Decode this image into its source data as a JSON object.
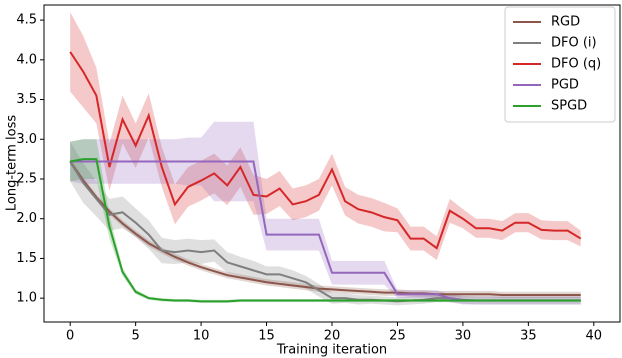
{
  "chart_data": {
    "type": "line",
    "xlabel": "Training iteration",
    "ylabel": "Long-term loss",
    "x": [
      0,
      1,
      2,
      3,
      4,
      5,
      6,
      7,
      8,
      9,
      10,
      11,
      12,
      13,
      14,
      15,
      16,
      17,
      18,
      19,
      20,
      21,
      22,
      23,
      24,
      25,
      26,
      27,
      28,
      29,
      30,
      31,
      32,
      33,
      34,
      35,
      36,
      37,
      38,
      39
    ],
    "xlim": [
      -2,
      42
    ],
    "xticks": [
      0,
      5,
      10,
      15,
      20,
      25,
      30,
      35,
      40
    ],
    "ylim": [
      0.7,
      4.69
    ],
    "yticks": [
      {
        "value": 1,
        "label": "1.0"
      },
      1.5,
      {
        "value": 2,
        "label": "2.0"
      },
      2.5,
      {
        "value": 3,
        "label": "3.0"
      },
      3.5,
      {
        "value": 4,
        "label": "4.0"
      },
      4.5
    ],
    "legend": "upper right",
    "series": [
      {
        "name": "RGD",
        "color": "#8c564b",
        "values": [
          2.72,
          2.48,
          2.27,
          2.09,
          1.94,
          1.81,
          1.69,
          1.6,
          1.52,
          1.45,
          1.39,
          1.34,
          1.29,
          1.26,
          1.23,
          1.2,
          1.18,
          1.16,
          1.14,
          1.12,
          1.11,
          1.1,
          1.09,
          1.08,
          1.07,
          1.07,
          1.06,
          1.06,
          1.05,
          1.05,
          1.05,
          1.05,
          1.05,
          1.04,
          1.04,
          1.04,
          1.04,
          1.04,
          1.04,
          1.04
        ],
        "errors": [
          0.04,
          0.04,
          0.04,
          0.04,
          0.04,
          0.04,
          0.04,
          0.04,
          0.04,
          0.04,
          0.04,
          0.04,
          0.04,
          0.04,
          0.04,
          0.04,
          0.04,
          0.04,
          0.04,
          0.04,
          0.04,
          0.04,
          0.04,
          0.04,
          0.04,
          0.04,
          0.04,
          0.04,
          0.04,
          0.04,
          0.04,
          0.04,
          0.04,
          0.04,
          0.04,
          0.04,
          0.04,
          0.04,
          0.04,
          0.04
        ]
      },
      {
        "name": "DFO (i)",
        "color": "#7f7f7f",
        "values": [
          2.72,
          2.45,
          2.25,
          2.05,
          2.08,
          1.95,
          1.8,
          1.6,
          1.58,
          1.6,
          1.58,
          1.6,
          1.45,
          1.4,
          1.35,
          1.3,
          1.3,
          1.25,
          1.2,
          1.1,
          1.0,
          1.0,
          0.98,
          0.98,
          0.97,
          0.96,
          0.97,
          0.98,
          1.0,
          1.0,
          0.98,
          0.97,
          0.97,
          0.97,
          0.97,
          0.97,
          0.97,
          0.97,
          0.97,
          0.97
        ],
        "errors": [
          0.25,
          0.25,
          0.22,
          0.2,
          0.2,
          0.18,
          0.18,
          0.16,
          0.15,
          0.15,
          0.15,
          0.14,
          0.13,
          0.12,
          0.12,
          0.1,
          0.1,
          0.1,
          0.08,
          0.08,
          0.07,
          0.06,
          0.06,
          0.05,
          0.05,
          0.05,
          0.05,
          0.05,
          0.05,
          0.05,
          0.05,
          0.05,
          0.05,
          0.05,
          0.05,
          0.05,
          0.05,
          0.05,
          0.05,
          0.05
        ]
      },
      {
        "name": "DFO (q)",
        "color": "#d62728",
        "values": [
          4.1,
          3.85,
          3.55,
          2.65,
          3.25,
          2.92,
          3.3,
          2.65,
          2.18,
          2.4,
          2.48,
          2.57,
          2.42,
          2.65,
          2.3,
          2.28,
          2.38,
          2.18,
          2.22,
          2.3,
          2.62,
          2.22,
          2.12,
          2.08,
          2.02,
          1.98,
          1.75,
          1.75,
          1.63,
          2.1,
          2.0,
          1.88,
          1.88,
          1.85,
          1.95,
          1.95,
          1.86,
          1.85,
          1.85,
          1.75
        ],
        "errors": [
          0.5,
          0.45,
          0.35,
          0.3,
          0.3,
          0.28,
          0.28,
          0.25,
          0.25,
          0.25,
          0.25,
          0.25,
          0.25,
          0.25,
          0.25,
          0.22,
          0.22,
          0.2,
          0.2,
          0.2,
          0.2,
          0.18,
          0.18,
          0.18,
          0.18,
          0.15,
          0.15,
          0.15,
          0.15,
          0.15,
          0.12,
          0.12,
          0.12,
          0.12,
          0.12,
          0.12,
          0.12,
          0.12,
          0.12,
          0.1
        ]
      },
      {
        "name": "PGD",
        "color": "#9467bd",
        "values": [
          2.72,
          2.72,
          2.72,
          2.72,
          2.72,
          2.72,
          2.72,
          2.72,
          2.72,
          2.72,
          2.72,
          2.72,
          2.72,
          2.72,
          2.72,
          1.8,
          1.8,
          1.8,
          1.8,
          1.8,
          1.32,
          1.32,
          1.32,
          1.32,
          1.32,
          1.05,
          1.05,
          1.05,
          1.05,
          1.0,
          0.97,
          0.97,
          0.97,
          0.97,
          0.97,
          0.97,
          0.97,
          0.97,
          0.97,
          0.97
        ],
        "errors": [
          0.25,
          0.28,
          0.28,
          0.28,
          0.28,
          0.28,
          0.28,
          0.28,
          0.28,
          0.3,
          0.3,
          0.5,
          0.5,
          0.5,
          0.5,
          0.2,
          0.2,
          0.2,
          0.2,
          0.2,
          0.15,
          0.15,
          0.15,
          0.15,
          0.15,
          0.05,
          0.05,
          0.05,
          0.05,
          0.05,
          0.05,
          0.05,
          0.05,
          0.05,
          0.05,
          0.05,
          0.05,
          0.05,
          0.05,
          0.05
        ]
      },
      {
        "name": "SPGD",
        "color": "#2ca02c",
        "values": [
          2.72,
          2.75,
          2.75,
          1.9,
          1.33,
          1.08,
          1.0,
          0.98,
          0.97,
          0.97,
          0.96,
          0.96,
          0.96,
          0.97,
          0.97,
          0.97,
          0.97,
          0.97,
          0.97,
          0.97,
          0.97,
          0.97,
          0.97,
          0.97,
          0.97,
          0.97,
          0.97,
          0.97,
          0.97,
          0.97,
          0.97,
          0.97,
          0.97,
          0.97,
          0.97,
          0.97,
          0.97,
          0.97,
          0.97,
          0.97
        ],
        "errors": [
          0.25,
          0.25,
          0.25,
          0.15,
          0.05,
          0.03,
          0.02,
          0.02,
          0.02,
          0.02,
          0.02,
          0.02,
          0.02,
          0.02,
          0.02,
          0.02,
          0.02,
          0.02,
          0.02,
          0.02,
          0.02,
          0.02,
          0.02,
          0.02,
          0.02,
          0.02,
          0.02,
          0.02,
          0.02,
          0.02,
          0.02,
          0.02,
          0.02,
          0.02,
          0.02,
          0.02,
          0.02,
          0.02,
          0.02,
          0.02
        ]
      }
    ]
  }
}
